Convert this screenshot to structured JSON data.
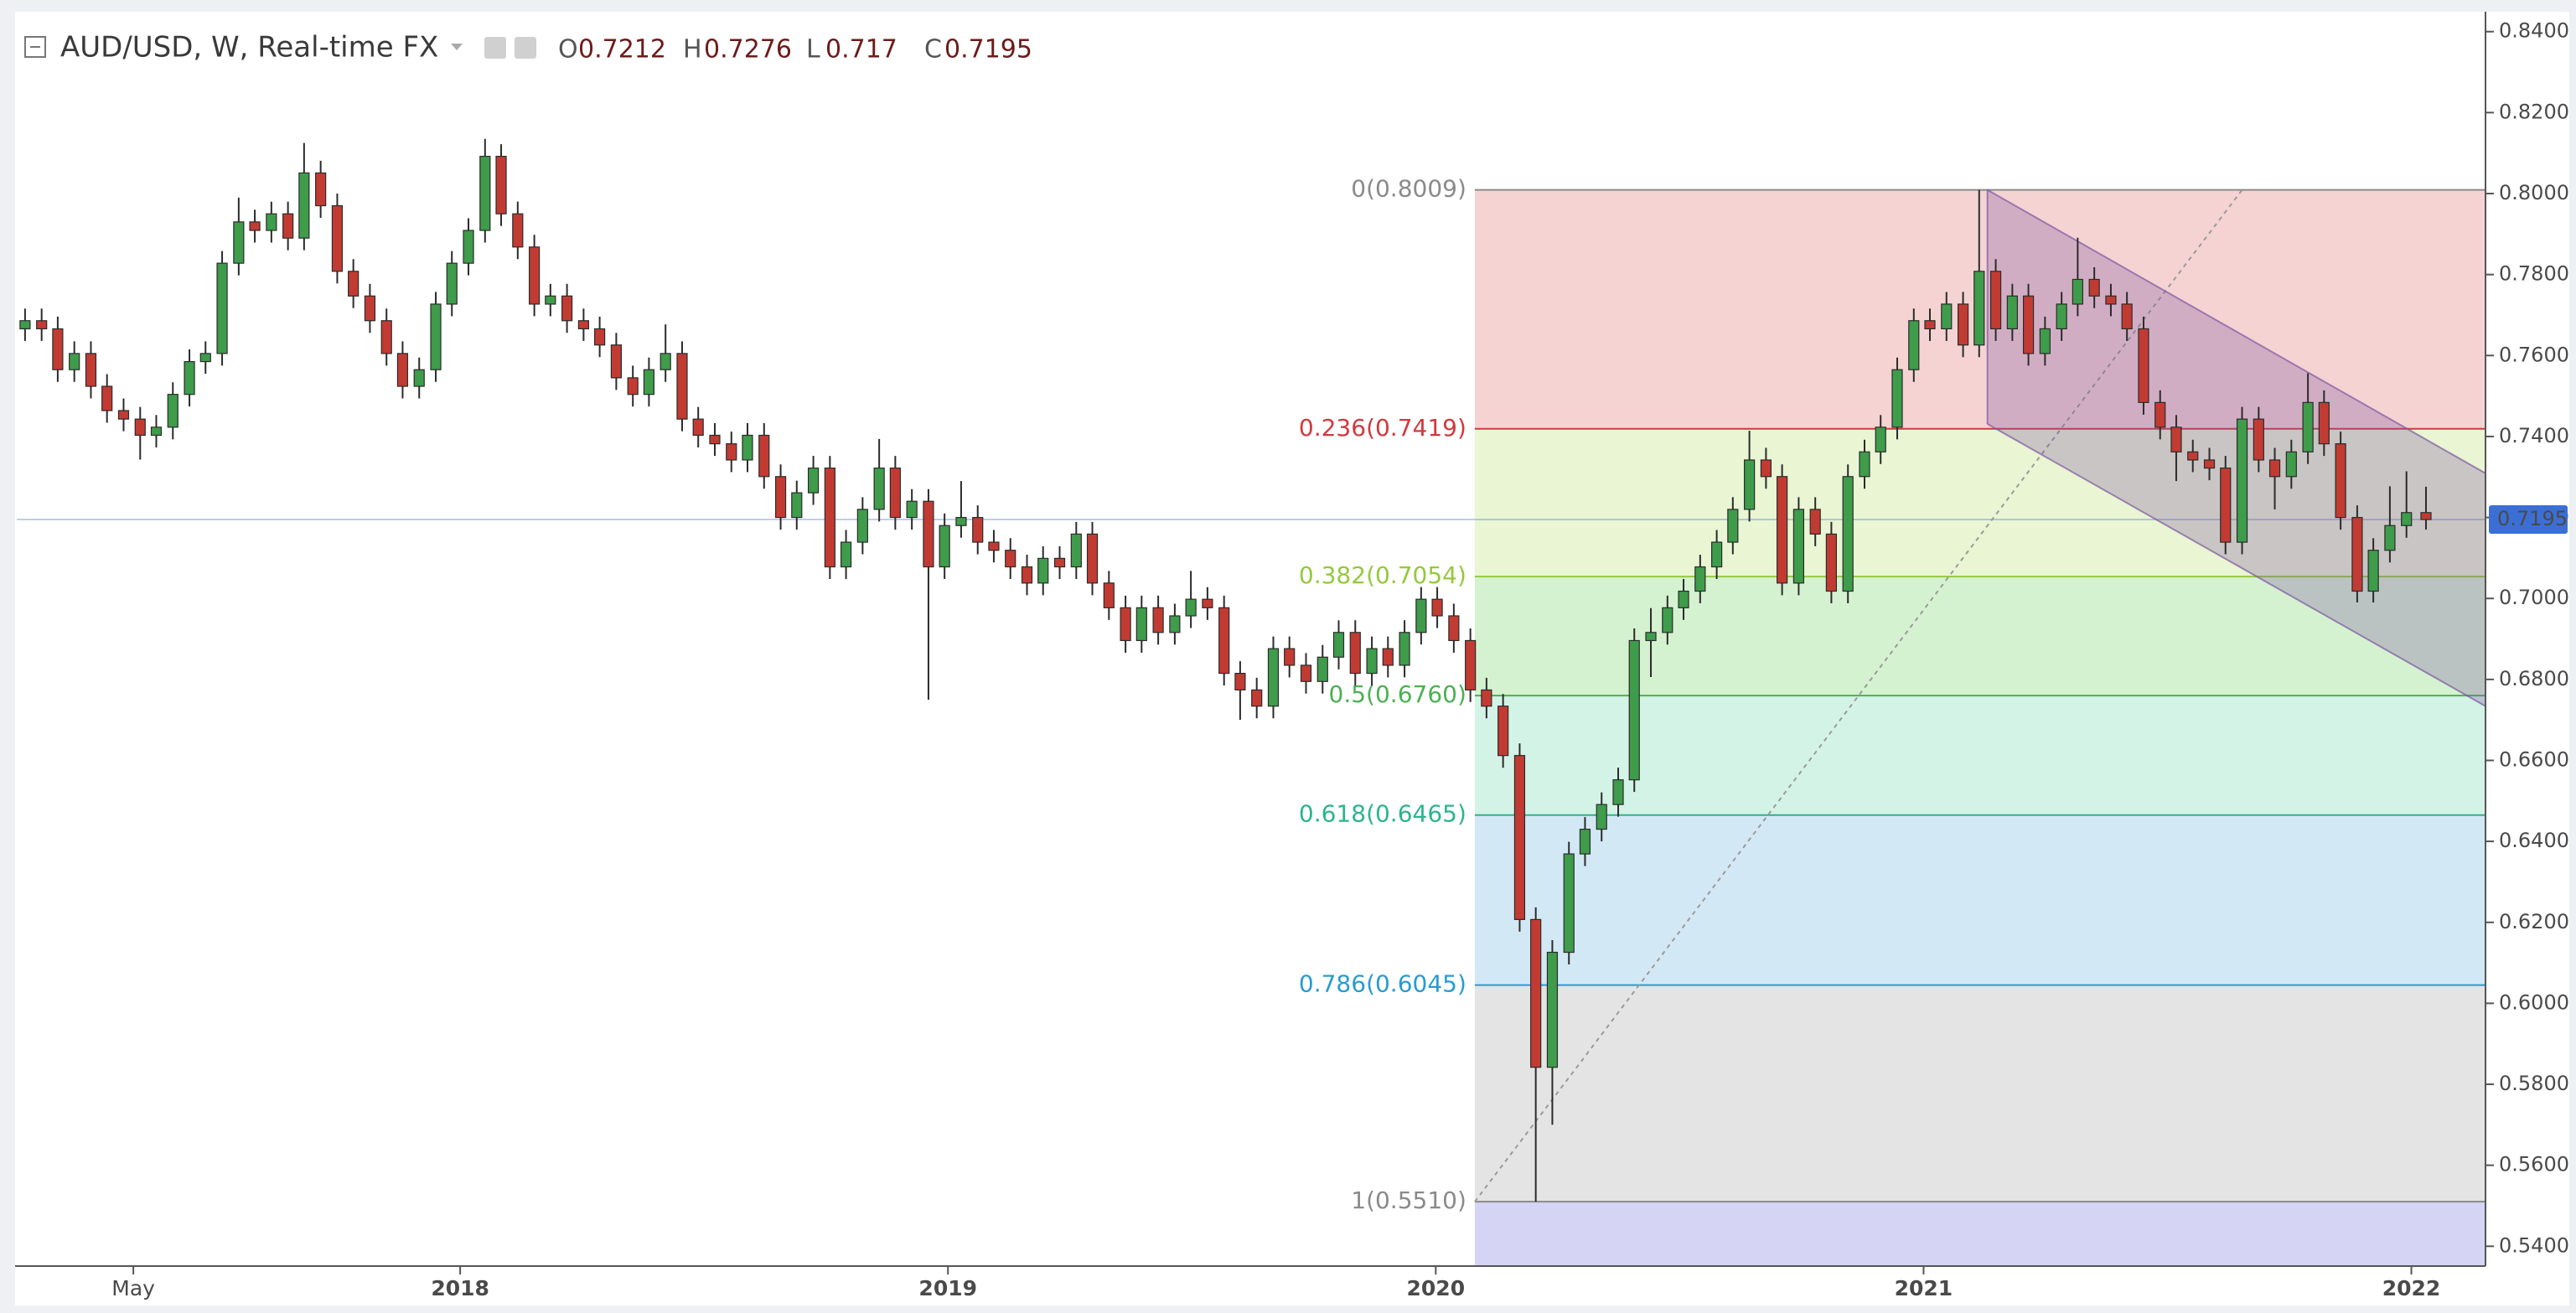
{
  "chart_data": {
    "type": "candlestick",
    "symbol": "AUD/USD, W, Real-time FX",
    "ohlc_labels": [
      "O",
      "H",
      "L",
      "C"
    ],
    "up_color": "#3e9c4b",
    "down_color": "#c23b33",
    "wick_color": "#2b2b2b",
    "last_price_color": "#3b6fd4",
    "grid": false,
    "xlim": [
      2017.091,
      2022.152
    ],
    "ylim": [
      0.5351,
      0.8445
    ],
    "xticks": [
      {
        "value": 2017.33,
        "label": "May"
      },
      2018,
      2019,
      2020,
      2021,
      2022
    ],
    "yticks": [
      {
        "value": 0.54,
        "label": "0.5400"
      },
      {
        "value": 0.56,
        "label": "0.5600"
      },
      {
        "value": 0.58,
        "label": "0.5800"
      },
      {
        "value": 0.6,
        "label": "0.6000"
      },
      {
        "value": 0.62,
        "label": "0.6200"
      },
      {
        "value": 0.64,
        "label": "0.6400"
      },
      {
        "value": 0.66,
        "label": "0.6600"
      },
      {
        "value": 0.68,
        "label": "0.6800"
      },
      {
        "value": 0.7,
        "label": "0.7000"
      },
      {
        "value": 0.72,
        "label": "0.7200"
      },
      {
        "value": 0.74,
        "label": "0.7400"
      },
      {
        "value": 0.76,
        "label": "0.7600"
      },
      {
        "value": 0.78,
        "label": "0.7800"
      },
      {
        "value": 0.8,
        "label": "0.8000"
      },
      {
        "value": 0.82,
        "label": "0.8200"
      },
      {
        "value": 0.84,
        "label": "0.8400"
      }
    ],
    "x": [
      2017.108,
      2017.142,
      2017.175,
      2017.209,
      2017.243,
      2017.276,
      2017.31,
      2017.344,
      2017.377,
      2017.411,
      2017.445,
      2017.478,
      2017.512,
      2017.546,
      2017.579,
      2017.613,
      2017.647,
      2017.68,
      2017.714,
      2017.748,
      2017.781,
      2017.815,
      2017.849,
      2017.882,
      2017.916,
      2017.95,
      2017.983,
      2018.017,
      2018.051,
      2018.084,
      2018.118,
      2018.152,
      2018.185,
      2018.219,
      2018.253,
      2018.286,
      2018.32,
      2018.354,
      2018.387,
      2018.421,
      2018.455,
      2018.488,
      2018.522,
      2018.556,
      2018.589,
      2018.623,
      2018.657,
      2018.69,
      2018.724,
      2018.758,
      2018.791,
      2018.825,
      2018.859,
      2018.892,
      2018.926,
      2018.96,
      2018.993,
      2019.027,
      2019.061,
      2019.094,
      2019.128,
      2019.162,
      2019.195,
      2019.229,
      2019.263,
      2019.296,
      2019.33,
      2019.364,
      2019.397,
      2019.431,
      2019.465,
      2019.498,
      2019.532,
      2019.566,
      2019.599,
      2019.633,
      2019.667,
      2019.7,
      2019.734,
      2019.768,
      2019.801,
      2019.835,
      2019.869,
      2019.902,
      2019.936,
      2019.97,
      2020.003,
      2020.037,
      2020.071,
      2020.104,
      2020.138,
      2020.172,
      2020.205,
      2020.239,
      2020.273,
      2020.306,
      2020.34,
      2020.374,
      2020.407,
      2020.441,
      2020.475,
      2020.508,
      2020.542,
      2020.576,
      2020.609,
      2020.643,
      2020.677,
      2020.71,
      2020.744,
      2020.778,
      2020.811,
      2020.845,
      2020.879,
      2020.912,
      2020.946,
      2020.98,
      2021.013,
      2021.047,
      2021.081,
      2021.114,
      2021.148,
      2021.182,
      2021.215,
      2021.249,
      2021.283,
      2021.316,
      2021.35,
      2021.384,
      2021.417,
      2021.451,
      2021.485,
      2021.518,
      2021.552,
      2021.586,
      2021.619,
      2021.653,
      2021.687,
      2021.72,
      2021.754,
      2021.788,
      2021.821,
      2021.855,
      2021.889,
      2021.922,
      2021.956,
      2021.99,
      2022.03
    ],
    "open": [
      0.7666,
      0.7686,
      0.7666,
      0.7565,
      0.7605,
      0.7524,
      0.7464,
      0.7443,
      0.7403,
      0.7423,
      0.7504,
      0.7585,
      0.7605,
      0.7828,
      0.793,
      0.7909,
      0.795,
      0.789,
      0.8051,
      0.797,
      0.7808,
      0.7747,
      0.7686,
      0.7605,
      0.7524,
      0.7565,
      0.7727,
      0.7828,
      0.7909,
      0.8092,
      0.795,
      0.7868,
      0.7727,
      0.7747,
      0.7686,
      0.7666,
      0.7626,
      0.7545,
      0.7504,
      0.7565,
      0.7605,
      0.7443,
      0.7403,
      0.7382,
      0.7342,
      0.7403,
      0.7301,
      0.72,
      0.7261,
      0.7322,
      0.7078,
      0.7139,
      0.722,
      0.7322,
      0.72,
      0.724,
      0.7078,
      0.718,
      0.72,
      0.7139,
      0.7119,
      0.7078,
      0.7038,
      0.7099,
      0.7078,
      0.7159,
      0.7038,
      0.6977,
      0.6896,
      0.6977,
      0.6916,
      0.6957,
      0.6998,
      0.6977,
      0.6815,
      0.6774,
      0.6734,
      0.6876,
      0.6835,
      0.6795,
      0.6855,
      0.6916,
      0.6815,
      0.6876,
      0.6835,
      0.6916,
      0.6998,
      0.6957,
      0.6896,
      0.6774,
      0.6734,
      0.6612,
      0.6207,
      0.5842,
      0.6126,
      0.6369,
      0.643,
      0.6491,
      0.6552,
      0.6896,
      0.6916,
      0.6977,
      0.7018,
      0.7078,
      0.7139,
      0.722,
      0.7342,
      0.7301,
      0.7038,
      0.722,
      0.7159,
      0.7018,
      0.7301,
      0.7362,
      0.7423,
      0.7565,
      0.7686,
      0.7666,
      0.7727,
      0.7626,
      0.7808,
      0.7666,
      0.7747,
      0.7605,
      0.7666,
      0.7727,
      0.7788,
      0.7747,
      0.7727,
      0.7666,
      0.7484,
      0.7423,
      0.7362,
      0.7342,
      0.7322,
      0.7139,
      0.7443,
      0.7342,
      0.7301,
      0.7362,
      0.7484,
      0.7382,
      0.72,
      0.7018,
      0.7119,
      0.718,
      0.7212
    ],
    "high": [
      0.7716,
      0.7716,
      0.7696,
      0.7635,
      0.7635,
      0.7554,
      0.7494,
      0.7473,
      0.7453,
      0.7534,
      0.7615,
      0.7635,
      0.7858,
      0.799,
      0.796,
      0.798,
      0.798,
      0.8125,
      0.8081,
      0.8,
      0.7838,
      0.7777,
      0.7716,
      0.7635,
      0.7595,
      0.7757,
      0.7858,
      0.7939,
      0.8135,
      0.8122,
      0.798,
      0.7898,
      0.7777,
      0.7777,
      0.7716,
      0.7696,
      0.7656,
      0.7575,
      0.7595,
      0.7677,
      0.7635,
      0.7473,
      0.7433,
      0.7412,
      0.7433,
      0.7433,
      0.7331,
      0.7291,
      0.7352,
      0.7352,
      0.7169,
      0.725,
      0.7394,
      0.7352,
      0.727,
      0.727,
      0.721,
      0.729,
      0.723,
      0.7169,
      0.7149,
      0.7108,
      0.7129,
      0.7129,
      0.7189,
      0.7189,
      0.7068,
      0.7007,
      0.7007,
      0.7007,
      0.6987,
      0.7068,
      0.7028,
      0.7007,
      0.6845,
      0.6804,
      0.6906,
      0.6906,
      0.6865,
      0.6885,
      0.6946,
      0.6946,
      0.6906,
      0.6906,
      0.6946,
      0.7028,
      0.7028,
      0.6987,
      0.6926,
      0.6804,
      0.6764,
      0.6642,
      0.6237,
      0.6156,
      0.6399,
      0.646,
      0.6521,
      0.6582,
      0.6926,
      0.6976,
      0.7007,
      0.7048,
      0.7108,
      0.7169,
      0.725,
      0.7414,
      0.7372,
      0.7331,
      0.725,
      0.725,
      0.7189,
      0.7331,
      0.7392,
      0.7453,
      0.7595,
      0.7716,
      0.7716,
      0.7757,
      0.7757,
      0.8009,
      0.7838,
      0.7777,
      0.7777,
      0.7696,
      0.7757,
      0.7891,
      0.7818,
      0.7777,
      0.7757,
      0.7696,
      0.7514,
      0.7453,
      0.7392,
      0.7372,
      0.7352,
      0.7473,
      0.7473,
      0.7372,
      0.7392,
      0.7556,
      0.7514,
      0.7412,
      0.723,
      0.7149,
      0.7277,
      0.7314,
      0.7276
    ],
    "low": [
      0.7636,
      0.7636,
      0.7535,
      0.7535,
      0.7494,
      0.7434,
      0.7413,
      0.7343,
      0.7373,
      0.7393,
      0.7474,
      0.7555,
      0.7575,
      0.7798,
      0.7879,
      0.7879,
      0.786,
      0.786,
      0.794,
      0.7778,
      0.7717,
      0.7656,
      0.7575,
      0.7494,
      0.7494,
      0.7535,
      0.7697,
      0.7798,
      0.7879,
      0.792,
      0.7838,
      0.7697,
      0.7697,
      0.7656,
      0.7636,
      0.7596,
      0.7515,
      0.7474,
      0.7474,
      0.7535,
      0.7413,
      0.7373,
      0.7352,
      0.7312,
      0.7312,
      0.7271,
      0.717,
      0.717,
      0.7231,
      0.7048,
      0.7048,
      0.7109,
      0.719,
      0.717,
      0.717,
      0.675,
      0.7048,
      0.715,
      0.7109,
      0.7089,
      0.7048,
      0.7008,
      0.7008,
      0.7048,
      0.7048,
      0.7008,
      0.6947,
      0.6866,
      0.6866,
      0.6886,
      0.6886,
      0.6927,
      0.6947,
      0.6785,
      0.67,
      0.6704,
      0.6704,
      0.6805,
      0.6765,
      0.6765,
      0.6825,
      0.6785,
      0.6785,
      0.6805,
      0.6805,
      0.6886,
      0.6927,
      0.6866,
      0.6744,
      0.6704,
      0.6582,
      0.6177,
      0.551,
      0.57,
      0.6096,
      0.6339,
      0.64,
      0.6461,
      0.6522,
      0.6806,
      0.6886,
      0.6947,
      0.6988,
      0.7048,
      0.7109,
      0.719,
      0.7271,
      0.7008,
      0.7008,
      0.7129,
      0.6988,
      0.6988,
      0.7271,
      0.7332,
      0.7393,
      0.7535,
      0.7636,
      0.7636,
      0.7596,
      0.7596,
      0.7636,
      0.7636,
      0.7575,
      0.7575,
      0.7636,
      0.7697,
      0.7717,
      0.7697,
      0.7636,
      0.7454,
      0.7393,
      0.729,
      0.7312,
      0.7292,
      0.7109,
      0.7109,
      0.7312,
      0.722,
      0.7271,
      0.7332,
      0.7352,
      0.717,
      0.699,
      0.699,
      0.7089,
      0.715,
      0.717
    ],
    "close": [
      0.7686,
      0.7666,
      0.7565,
      0.7605,
      0.7524,
      0.7464,
      0.7443,
      0.7403,
      0.7423,
      0.7504,
      0.7585,
      0.7605,
      0.7828,
      0.793,
      0.7909,
      0.795,
      0.789,
      0.8051,
      0.797,
      0.7808,
      0.7747,
      0.7686,
      0.7605,
      0.7524,
      0.7565,
      0.7727,
      0.7828,
      0.7909,
      0.8092,
      0.795,
      0.7868,
      0.7727,
      0.7747,
      0.7686,
      0.7666,
      0.7626,
      0.7545,
      0.7504,
      0.7565,
      0.7605,
      0.7443,
      0.7403,
      0.7382,
      0.7342,
      0.7403,
      0.7301,
      0.72,
      0.7261,
      0.7322,
      0.7078,
      0.7139,
      0.722,
      0.7322,
      0.72,
      0.724,
      0.7078,
      0.718,
      0.72,
      0.7139,
      0.7119,
      0.7078,
      0.7038,
      0.7099,
      0.7078,
      0.7159,
      0.7038,
      0.6977,
      0.6896,
      0.6977,
      0.6916,
      0.6957,
      0.6998,
      0.6977,
      0.6815,
      0.6774,
      0.6734,
      0.6876,
      0.6835,
      0.6795,
      0.6855,
      0.6916,
      0.6815,
      0.6876,
      0.6835,
      0.6916,
      0.6998,
      0.6957,
      0.6896,
      0.6774,
      0.6734,
      0.6612,
      0.6207,
      0.5842,
      0.6126,
      0.6369,
      0.643,
      0.6491,
      0.6552,
      0.6896,
      0.6916,
      0.6977,
      0.7018,
      0.7078,
      0.7139,
      0.722,
      0.7342,
      0.7301,
      0.7038,
      0.722,
      0.7159,
      0.7018,
      0.7301,
      0.7362,
      0.7423,
      0.7565,
      0.7686,
      0.7666,
      0.7727,
      0.7626,
      0.7808,
      0.7666,
      0.7747,
      0.7605,
      0.7666,
      0.7727,
      0.7788,
      0.7747,
      0.7727,
      0.7666,
      0.7484,
      0.7423,
      0.7362,
      0.7342,
      0.7322,
      0.7139,
      0.7443,
      0.7342,
      0.7301,
      0.7362,
      0.7484,
      0.7382,
      0.72,
      0.7018,
      0.7119,
      0.718,
      0.7212,
      0.7195
    ],
    "fib": {
      "x_start": 2020.08,
      "levels": [
        {
          "label": "0(0.8009)",
          "price": 0.8009,
          "color": "#8a8a8a",
          "fill": "#f5d3d3"
        },
        {
          "label": "0.236(0.7419)",
          "price": 0.7419,
          "color": "#d0393e",
          "fill": "#e9f5d3"
        },
        {
          "label": "0.382(0.7054)",
          "price": 0.7054,
          "color": "#95c93d",
          "fill": "#d5f2d0"
        },
        {
          "label": "0.5(0.6760)",
          "price": 0.676,
          "color": "#4cb052",
          "fill": "#d3f3e6"
        },
        {
          "label": "0.618(0.6465)",
          "price": 0.6465,
          "color": "#2bb58d",
          "fill": "#d3e8f5"
        },
        {
          "label": "0.786(0.6045)",
          "price": 0.6045,
          "color": "#2a9bd1",
          "fill": "#e4e4e4"
        },
        {
          "label": "1(0.5510)",
          "price": 0.551,
          "color": "#8a8a8a",
          "fill": "#d6d4f5"
        }
      ]
    },
    "channel": {
      "x": [
        2021.131,
        2022.152
      ],
      "upper": [
        0.8009,
        0.7309
      ],
      "lower": [
        0.7431,
        0.6734
      ],
      "color": "#7e57a2"
    },
    "trend_line": {
      "x": [
        2020.08,
        2021.653
      ],
      "y": [
        0.551,
        0.8009
      ],
      "color": "#9a9a9a"
    }
  }
}
